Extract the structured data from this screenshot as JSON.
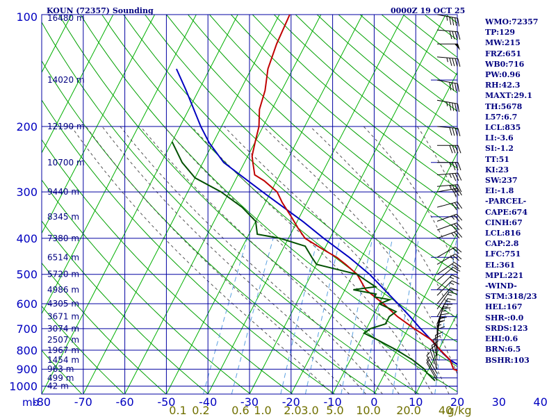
{
  "header": {
    "station": "KOUN (72357) Sounding",
    "datetime": "0000Z 19 OCT 25"
  },
  "stats": [
    "WMO:72357",
    "TP:129",
    "MW:215",
    "FRZ:651",
    "WB0:716",
    "PW:0.96",
    "RH:42.3",
    "MAXT:29.1",
    "TH:5678",
    "L57:6.7",
    "LCL:835",
    "LI:-3.6",
    "SI:-1.2",
    "TT:51",
    "KI:23",
    "SW:237",
    "EI:-1.8",
    "-PARCEL-",
    "CAPE:674",
    "CINH:67",
    "LCL:816",
    "CAP:2.8",
    "LFC:751",
    "EL:361",
    "MPL:221",
    "-WIND-",
    "STM:318/23",
    "HEL:167",
    "SHR-:0.0",
    "SRDS:123",
    "EHI:0.6",
    "BRN:6.5",
    "BSHR:103"
  ],
  "colors": {
    "grid": "#0000a0",
    "axis_text": "#0000c0",
    "height_text": "#000080",
    "dry_adiabat": "#00a000",
    "isotherm": "#00b000",
    "moist_adiabat": "#505050",
    "mixing_ratio": "#5aa0e0",
    "temperature": "#c00000",
    "dewpoint": "#005000",
    "parcel": "#0000c0",
    "wind": "#000000",
    "mixing_label": "#707000"
  },
  "chart_data": {
    "type": "skew-t",
    "title": "KOUN (72357) Sounding",
    "pressure_unit": "mb",
    "mixing_ratio_unit": "g/kg",
    "pressure_levels": [
      100,
      200,
      300,
      400,
      500,
      600,
      700,
      800,
      900,
      1000
    ],
    "temperature_ticks": [
      -80,
      -70,
      -60,
      -50,
      -40,
      -30,
      -20,
      -10,
      0,
      10,
      20,
      30,
      40
    ],
    "temperature_tick_labels": [
      "-80",
      "-70",
      "-60",
      "-50",
      "-40",
      "-30",
      "-20",
      "-10",
      "0",
      "10",
      "20",
      "30",
      "40"
    ],
    "mixing_ratio_labels": [
      "0.1",
      "0.2",
      "0.6",
      "1.0",
      "2.0",
      "3.0",
      "5.0",
      "10.0",
      "20.0",
      "40",
      "g/kg"
    ],
    "height_labels": [
      {
        "p": 100,
        "label": "16480 m"
      },
      {
        "p": 150,
        "label": "14020 m"
      },
      {
        "p": 200,
        "label": "12190 m"
      },
      {
        "p": 250,
        "label": "10700 m"
      },
      {
        "p": 300,
        "label": "9440 m"
      },
      {
        "p": 350,
        "label": "8345 m"
      },
      {
        "p": 400,
        "label": "7380 m"
      },
      {
        "p": 450,
        "label": "6514 m"
      },
      {
        "p": 500,
        "label": "5720 m"
      },
      {
        "p": 550,
        "label": "4986 m"
      },
      {
        "p": 600,
        "label": "4305 m"
      },
      {
        "p": 650,
        "label": "3671 m"
      },
      {
        "p": 700,
        "label": "3074 m"
      },
      {
        "p": 750,
        "label": "2507 m"
      },
      {
        "p": 800,
        "label": "1967 m"
      },
      {
        "p": 850,
        "label": "1454 m"
      },
      {
        "p": 900,
        "label": "963 m"
      },
      {
        "p": 950,
        "label": "499 m"
      },
      {
        "p": 1000,
        "label": "42 m"
      }
    ],
    "temperature_profile": [
      [
        967,
        23
      ],
      [
        925,
        19.5
      ],
      [
        900,
        16
      ],
      [
        850,
        14
      ],
      [
        800,
        10.5
      ],
      [
        750,
        7
      ],
      [
        700,
        1.5
      ],
      [
        650,
        -4
      ],
      [
        600,
        -9
      ],
      [
        550,
        -15
      ],
      [
        500,
        -19
      ],
      [
        470,
        -23
      ],
      [
        450,
        -26
      ],
      [
        430,
        -30
      ],
      [
        400,
        -36
      ],
      [
        375,
        -39
      ],
      [
        350,
        -42
      ],
      [
        320,
        -46
      ],
      [
        300,
        -48.5
      ],
      [
        280,
        -53
      ],
      [
        270,
        -56
      ],
      [
        250,
        -58
      ],
      [
        240,
        -59
      ],
      [
        220,
        -60
      ],
      [
        200,
        -61
      ],
      [
        180,
        -63
      ],
      [
        160,
        -64
      ],
      [
        140,
        -66
      ],
      [
        120,
        -67
      ],
      [
        100,
        -67.5
      ]
    ],
    "dewpoint_profile": [
      [
        967,
        13
      ],
      [
        920,
        10
      ],
      [
        900,
        9
      ],
      [
        850,
        5
      ],
      [
        800,
        0
      ],
      [
        750,
        -6
      ],
      [
        720,
        -10
      ],
      [
        700,
        -9
      ],
      [
        680,
        -6
      ],
      [
        650,
        -6
      ],
      [
        630,
        -5
      ],
      [
        600,
        -10
      ],
      [
        585,
        -8
      ],
      [
        575,
        -12
      ],
      [
        565,
        -12
      ],
      [
        550,
        -18
      ],
      [
        540,
        -13
      ],
      [
        520,
        -16
      ],
      [
        500,
        -19
      ],
      [
        470,
        -30
      ],
      [
        450,
        -32
      ],
      [
        420,
        -35
      ],
      [
        400,
        -42
      ],
      [
        390,
        -48
      ],
      [
        360,
        -50
      ],
      [
        330,
        -55
      ],
      [
        300,
        -62
      ],
      [
        275,
        -70
      ],
      [
        250,
        -75
      ],
      [
        220,
        -80
      ]
    ],
    "parcel_profile": [
      [
        967,
        25
      ],
      [
        850,
        14
      ],
      [
        816,
        11.5
      ],
      [
        751,
        7
      ],
      [
        700,
        3
      ],
      [
        650,
        -1
      ],
      [
        600,
        -5.5
      ],
      [
        550,
        -10.5
      ],
      [
        500,
        -16
      ],
      [
        450,
        -23
      ],
      [
        400,
        -31.5
      ],
      [
        361,
        -38.5
      ],
      [
        300,
        -52
      ],
      [
        250,
        -65
      ],
      [
        221,
        -71
      ],
      [
        200,
        -75
      ],
      [
        160,
        -83
      ],
      [
        140,
        -88
      ]
    ],
    "winds": [
      [
        100,
        280,
        45
      ],
      [
        110,
        275,
        40
      ],
      [
        120,
        270,
        50
      ],
      [
        130,
        275,
        45
      ],
      [
        150,
        280,
        40
      ],
      [
        170,
        280,
        45
      ],
      [
        200,
        275,
        40
      ],
      [
        225,
        270,
        40
      ],
      [
        250,
        270,
        35
      ],
      [
        270,
        265,
        35
      ],
      [
        290,
        265,
        35
      ],
      [
        300,
        260,
        30
      ],
      [
        330,
        255,
        30
      ],
      [
        360,
        250,
        25
      ],
      [
        380,
        250,
        30
      ],
      [
        400,
        250,
        25
      ],
      [
        450,
        240,
        20
      ],
      [
        470,
        240,
        25
      ],
      [
        500,
        235,
        20
      ],
      [
        520,
        230,
        20
      ],
      [
        550,
        225,
        15
      ],
      [
        570,
        225,
        15
      ],
      [
        600,
        220,
        15
      ],
      [
        620,
        215,
        15
      ],
      [
        650,
        210,
        15
      ],
      [
        680,
        200,
        15
      ],
      [
        700,
        195,
        15
      ],
      [
        730,
        190,
        15
      ],
      [
        750,
        185,
        15
      ],
      [
        770,
        180,
        15
      ],
      [
        800,
        180,
        10
      ],
      [
        830,
        175,
        10
      ],
      [
        850,
        170,
        10
      ],
      [
        880,
        165,
        10
      ],
      [
        900,
        160,
        10
      ],
      [
        925,
        150,
        5
      ],
      [
        950,
        150,
        5
      ],
      [
        967,
        150,
        5
      ]
    ]
  }
}
